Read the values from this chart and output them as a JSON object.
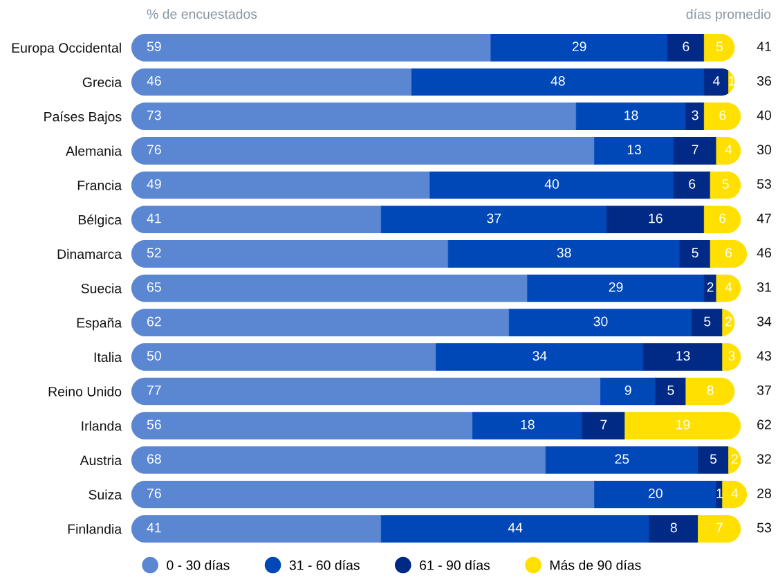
{
  "chart_data": [
    {
      "type": "bar",
      "orientation": "horizontal",
      "stacked": true,
      "title": "% de encuestados",
      "categories": [
        "Europa Occidental",
        "Grecia",
        "Países Bajos",
        "Alemania",
        "Francia",
        "Bélgica",
        "Dinamarca",
        "Suecia",
        "España",
        "Italia",
        "Reino Unido",
        "Irlanda",
        "Austria",
        "Suiza",
        "Finlandia"
      ],
      "series": [
        {
          "name": "0 - 30 días",
          "color": "#5a86d2",
          "values": [
            59,
            46,
            73,
            76,
            49,
            41,
            52,
            65,
            62,
            50,
            77,
            56,
            68,
            76,
            41
          ]
        },
        {
          "name": "31 - 60 días",
          "color": "#0047b8",
          "values": [
            29,
            48,
            18,
            13,
            40,
            37,
            38,
            29,
            30,
            34,
            9,
            18,
            25,
            20,
            44
          ]
        },
        {
          "name": "61 - 90 días",
          "color": "#002a85",
          "values": [
            6,
            4,
            3,
            7,
            6,
            16,
            5,
            2,
            5,
            13,
            5,
            7,
            5,
            1,
            8
          ]
        },
        {
          "name": "Más de 90 días",
          "color": "#ffe000",
          "values": [
            5,
            1,
            6,
            4,
            5,
            6,
            6,
            4,
            2,
            3,
            8,
            19,
            2,
            4,
            7
          ]
        }
      ],
      "data_labels": true,
      "legend": "bottom",
      "tick_labels": "y"
    },
    {
      "type": "other",
      "title": "días promedio",
      "annotations": [
        "41",
        "36",
        "40",
        "30",
        "53",
        "47",
        "46",
        "31",
        "34",
        "43",
        "37",
        "62",
        "32",
        "28",
        "53"
      ]
    }
  ]
}
